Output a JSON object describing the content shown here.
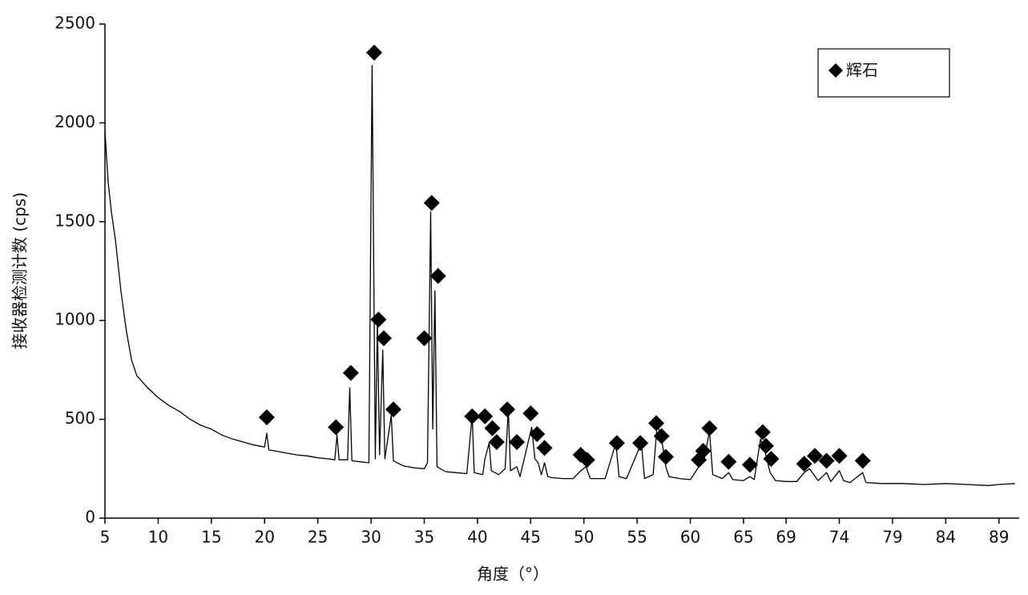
{
  "chart_data": {
    "type": "line",
    "xlabel": "角度（°）",
    "ylabel": "接收器检测计数 (cps)",
    "xlim": [
      5,
      90.9
    ],
    "ylim": [
      0,
      2500
    ],
    "xticks": [
      5,
      10,
      15,
      20,
      25,
      30,
      35,
      40,
      45,
      50,
      55,
      60,
      65,
      69,
      74,
      79,
      84,
      89
    ],
    "yticks": [
      0,
      500,
      1000,
      1500,
      2000,
      2500
    ],
    "legend": "upper right",
    "series": [
      {
        "color": "#000000",
        "x": [
          5,
          5.3,
          5.6,
          6,
          6.5,
          7,
          7.5,
          8,
          8.5,
          9,
          10,
          11,
          12,
          13,
          14,
          15,
          16,
          17,
          18,
          19,
          20,
          20.2,
          20.4,
          21,
          22,
          23,
          24,
          25,
          26,
          26.6,
          26.8,
          27,
          27.8,
          28,
          28.2,
          29,
          29.8,
          30.1,
          30.4,
          30.6,
          30.8,
          31.1,
          31.3,
          31.9,
          32.1,
          33,
          34,
          35,
          35.3,
          35.6,
          35.8,
          36,
          36.2,
          37,
          38,
          39,
          39.5,
          39.7,
          40.5,
          40.7,
          41.1,
          41.3,
          42,
          42.6,
          42.9,
          43.1,
          43.7,
          44,
          45.1,
          45.4,
          45.7,
          46,
          46.3,
          46.6,
          47,
          48,
          49,
          49.7,
          50.2,
          50.6,
          52,
          53,
          53.3,
          54,
          55.4,
          55.7,
          56.5,
          56.9,
          57.3,
          57.7,
          58,
          59,
          60,
          60.8,
          61.3,
          61.8,
          62.1,
          63,
          63.6,
          64,
          65,
          65.6,
          66,
          66.6,
          67,
          67.5,
          68,
          69,
          70,
          70.7,
          71.2,
          72,
          72.8,
          73.2,
          74,
          74.4,
          75,
          76.2,
          76.5,
          78,
          80,
          82,
          84,
          86,
          88,
          89,
          90.5
        ],
        "values": [
          1960,
          1700,
          1550,
          1400,
          1150,
          950,
          800,
          720,
          690,
          660,
          610,
          570,
          540,
          500,
          470,
          450,
          420,
          400,
          385,
          370,
          360,
          430,
          345,
          340,
          330,
          320,
          315,
          305,
          300,
          295,
          420,
          295,
          295,
          660,
          290,
          285,
          280,
          2290,
          300,
          1000,
          320,
          850,
          300,
          520,
          290,
          265,
          255,
          250,
          280,
          1550,
          450,
          1150,
          260,
          235,
          230,
          225,
          520,
          230,
          220,
          300,
          380,
          240,
          220,
          250,
          550,
          240,
          260,
          210,
          460,
          300,
          280,
          220,
          280,
          210,
          205,
          200,
          200,
          240,
          260,
          200,
          200,
          380,
          210,
          200,
          380,
          200,
          220,
          480,
          400,
          260,
          210,
          200,
          195,
          260,
          300,
          440,
          220,
          200,
          230,
          195,
          190,
          210,
          195,
          400,
          340,
          230,
          190,
          185,
          185,
          230,
          250,
          190,
          230,
          185,
          240,
          190,
          180,
          230,
          180,
          175,
          175,
          170,
          175,
          170,
          165,
          170,
          175
        ]
      },
      {
        "name": "辉石",
        "type": "scatter",
        "marker": "diamond",
        "color": "#000000",
        "x": [
          20.2,
          26.7,
          28.1,
          30.3,
          30.7,
          31.2,
          32.1,
          35.0,
          35.7,
          36.3,
          39.5,
          40.7,
          41.4,
          41.8,
          42.8,
          43.7,
          45.0,
          45.6,
          46.3,
          49.7,
          50.3,
          53.1,
          55.3,
          56.8,
          57.3,
          57.7,
          60.8,
          61.2,
          61.8,
          63.6,
          65.6,
          66.8,
          67.1,
          67.6,
          70.7,
          71.7,
          72.8,
          74.0,
          76.2
        ],
        "values": [
          510,
          460,
          735,
          2355,
          1005,
          910,
          550,
          910,
          1595,
          1225,
          515,
          515,
          455,
          385,
          550,
          385,
          530,
          425,
          355,
          320,
          295,
          380,
          380,
          480,
          415,
          310,
          295,
          340,
          455,
          285,
          270,
          435,
          365,
          300,
          275,
          315,
          290,
          315,
          290
        ]
      }
    ]
  }
}
